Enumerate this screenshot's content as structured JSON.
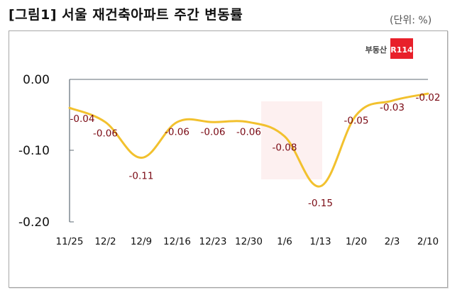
{
  "header": {
    "title": "[그림1] 서울 재건축아파트 주간 변동률",
    "unit": "(단위: %)"
  },
  "logo": {
    "text": "부동산",
    "badge": "R114",
    "badge_color": "#e8202a"
  },
  "colors": {
    "line": "#f2c12e",
    "data_label": "#7a0a14",
    "axis": "#5f6b75",
    "watermark": "#fbe3e4"
  },
  "chart_data": {
    "type": "line",
    "title": "[그림1] 서울 재건축아파트 주간 변동률",
    "unit": "%",
    "xlabel": "",
    "ylabel": "",
    "categories": [
      "11/25",
      "12/2",
      "12/9",
      "12/16",
      "12/23",
      "12/30",
      "1/6",
      "1/13",
      "1/20",
      "2/3",
      "2/10"
    ],
    "series": [
      {
        "name": "서울 재건축아파트 주간 변동률",
        "values": [
          -0.04,
          -0.06,
          -0.11,
          -0.06,
          -0.06,
          -0.06,
          -0.08,
          -0.15,
          -0.05,
          -0.03,
          -0.02
        ]
      }
    ],
    "data_labels": [
      "-0.04",
      "-0.06",
      "-0.11",
      "-0.06",
      "-0.06",
      "-0.06",
      "-0.08",
      "-0.15",
      "-0.05",
      "-0.03",
      "-0.02"
    ],
    "y_ticks": [
      "0.00",
      "-0.10",
      "-0.20"
    ],
    "ylim": [
      -0.2,
      0.0
    ],
    "grid": false,
    "legend": "none",
    "smooth": true
  }
}
